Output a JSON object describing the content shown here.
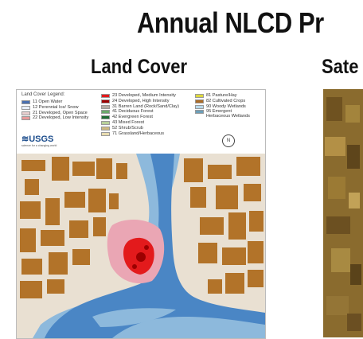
{
  "header": {
    "title": "Annual NLCD Pr",
    "left_subtitle": "Land Cover",
    "right_subtitle": "Sate"
  },
  "legend": {
    "title": "Land Cover Legend:",
    "col1": [
      {
        "label": "11 Open Water",
        "color": "#4a70b0"
      },
      {
        "label": "12 Perennial Ice/ Snow",
        "color": "#e8eff8"
      },
      {
        "label": "21 Developed, Open Space",
        "color": "#e7cfcf"
      },
      {
        "label": "22 Developed, Low Intensity",
        "color": "#e89a9a"
      }
    ],
    "col2": [
      {
        "label": "23 Developed, Medium Intensity",
        "color": "#e31a1c"
      },
      {
        "label": "24 Developed, High Intensity",
        "color": "#9c0000"
      },
      {
        "label": "31 Barren Land (Rock/Sand/Clay)",
        "color": "#b3ada3"
      },
      {
        "label": "41 Deciduous Forest",
        "color": "#6ba86b"
      },
      {
        "label": "42 Evergreen Forest",
        "color": "#1e6b33"
      },
      {
        "label": "43 Mixed Forest",
        "color": "#b8d19a"
      },
      {
        "label": "52 Shrub/Scrub",
        "color": "#ccb880"
      },
      {
        "label": "71 Grassland/Herbaceous",
        "color": "#e8dcb0"
      }
    ],
    "col3": [
      {
        "label": "81 Pasture/Hay",
        "color": "#ddd83e"
      },
      {
        "label": "82 Cultivated Crops",
        "color": "#ab6c28"
      },
      {
        "label": "90 Woody Wetlands",
        "color": "#b8d9eb"
      },
      {
        "label": "95 Emergent Herbaceous Wetlands",
        "color": "#6c9fb8"
      }
    ],
    "logo_text": "≋USGS",
    "logo_tagline": "science for a changing world",
    "north_arrow": "N"
  },
  "colors": {
    "background_land": "#e9e0d2",
    "crops": "#b27329",
    "water": "#4a86c5",
    "wetland": "#8db9dc",
    "dev_low": "#eaa6b4",
    "dev_med": "#e31a1c",
    "dev_high": "#9c0000"
  }
}
